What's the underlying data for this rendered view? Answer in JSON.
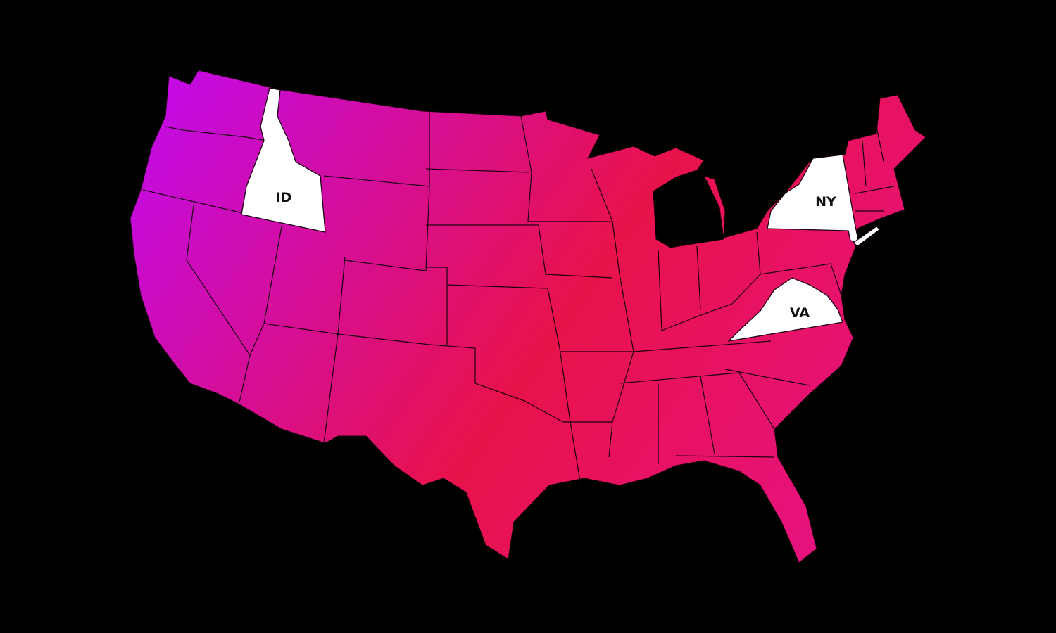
{
  "map": {
    "background": "#000000",
    "gradient_colors": [
      "#c20ae8",
      "#e8124a",
      "#e6127f"
    ],
    "highlight_color": "#ffffff",
    "highlighted_states": [
      {
        "abbr": "ID"
      },
      {
        "abbr": "NY"
      },
      {
        "abbr": "VA"
      }
    ]
  }
}
